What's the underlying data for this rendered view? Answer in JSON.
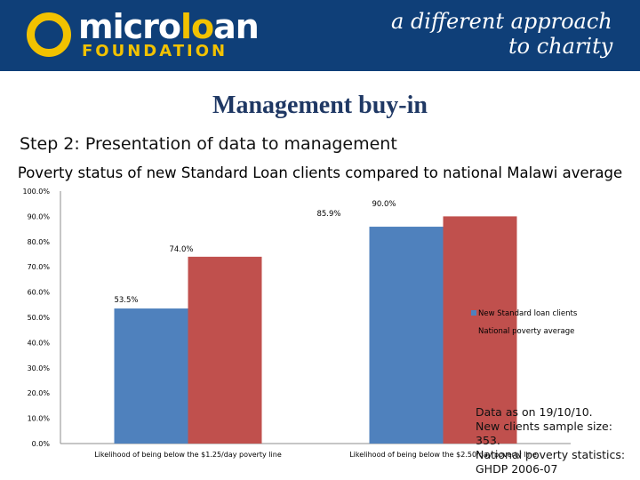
{
  "header": {
    "logo_micro": "micro",
    "logo_o": "lo",
    "logo_an": "an",
    "logo_foundation": "FOUNDATION",
    "tagline_line1": "a different approach",
    "tagline_line2": "to charity"
  },
  "slide": {
    "title": "Management buy-in",
    "subtitle": "Step 2: Presentation of data to management"
  },
  "chart_data": {
    "type": "bar",
    "title": "Poverty status of new Standard Loan clients compared to national Malawi average",
    "categories": [
      "Likelihood of being below the $1.25/day poverty line",
      "Likelihood of being below the $2.50/day poverty line"
    ],
    "series": [
      {
        "name": "New Standard loan clients",
        "values": [
          53.5,
          85.9
        ],
        "labels": [
          "53.5%",
          "85.9%"
        ],
        "color": "#4f81bd"
      },
      {
        "name": "National poverty average",
        "values": [
          74.0,
          90.0
        ],
        "labels": [
          "74.0%",
          "90.0%"
        ],
        "color": "#c0504d"
      }
    ],
    "yticks": [
      "0.0%",
      "10.0%",
      "20.0%",
      "30.0%",
      "40.0%",
      "50.0%",
      "60.0%",
      "70.0%",
      "80.0%",
      "90.0%",
      "100.0%"
    ],
    "ylim": [
      0,
      100
    ],
    "grid": false,
    "legend": "right"
  },
  "notes": {
    "line1": "Data as on 19/10/10.",
    "line2": "New clients sample size: 353.",
    "line3": "National poverty statistics:",
    "line4": "GHDP 2006-07"
  }
}
